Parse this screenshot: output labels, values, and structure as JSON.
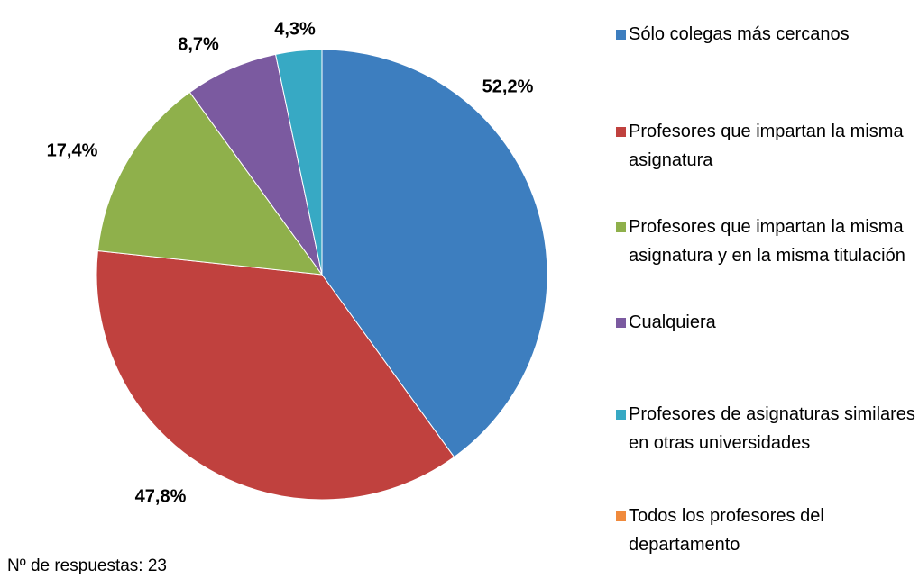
{
  "chart_data": {
    "type": "pie",
    "categories": [
      "Sólo colegas más cercanos",
      "Profesores que impartan la misma asignatura",
      "Profesores que impartan la misma asignatura y en la misma titulación",
      "Cualquiera",
      "Profesores de asignaturas similares en otras universidades",
      "Todos los profesores del departamento"
    ],
    "values": [
      52.2,
      47.8,
      17.4,
      8.7,
      4.3,
      0
    ],
    "value_labels": [
      "52,2%",
      "47,8%",
      "17,4%",
      "8,7%",
      "4,3%",
      null
    ],
    "colors": [
      "#3d7ebf",
      "#c0413e",
      "#8fb04b",
      "#7b5aa0",
      "#37a9c4",
      "#f08a3c"
    ],
    "note": "Nº de respuestas: 23"
  }
}
